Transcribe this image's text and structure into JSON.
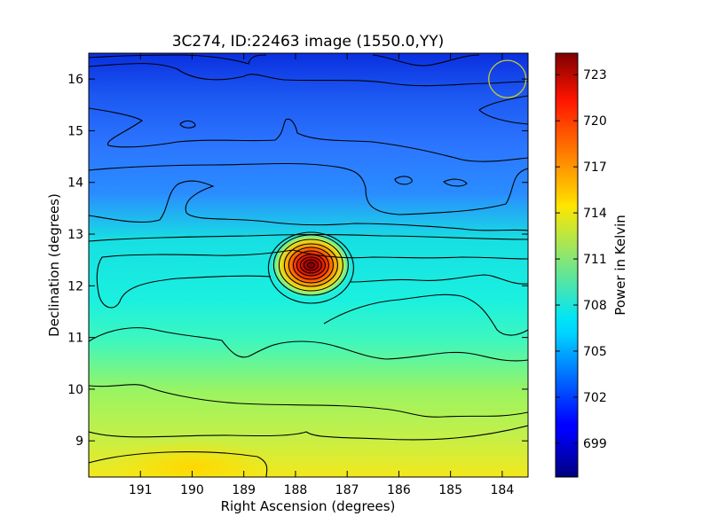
{
  "chart_data": {
    "type": "heatmap",
    "title": "3C274, ID:22463 image (1550.0,YY)",
    "xlabel": "Right Ascension (degrees)",
    "ylabel": "Declination (degrees)",
    "colorbar_label": "Power in Kelvin",
    "xlim": [
      192.0,
      183.5
    ],
    "ylim": [
      8.3,
      16.5
    ],
    "x_ticks": [
      191,
      190,
      189,
      188,
      187,
      186,
      185,
      184
    ],
    "y_ticks": [
      9,
      10,
      11,
      12,
      13,
      14,
      15,
      16
    ],
    "colorbar_range": [
      696.8,
      724.4
    ],
    "colorbar_ticks": [
      699,
      702,
      705,
      708,
      711,
      714,
      717,
      720,
      723
    ],
    "colormap": "jet",
    "source_peak": {
      "ra": 187.7,
      "dec": 12.4,
      "value": 724.2
    },
    "beam_marker": {
      "ra": 183.9,
      "dec": 16.0,
      "color": "#c8c832"
    },
    "contour_color": "#000000"
  }
}
